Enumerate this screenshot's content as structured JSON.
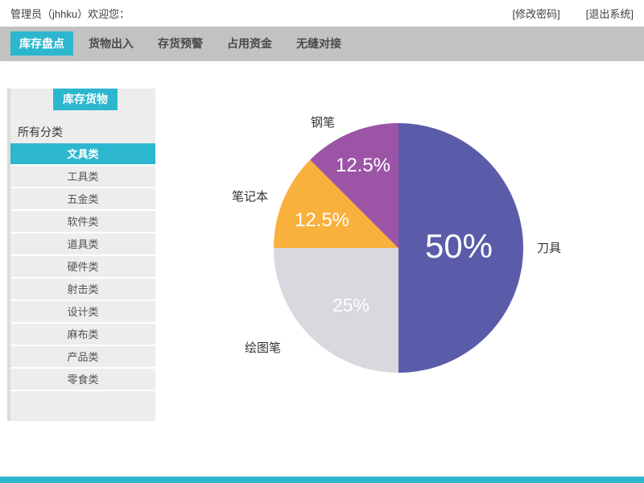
{
  "topbar": {
    "welcome": "管理员（jhhku）欢迎您：",
    "change_password": "[修改密码]",
    "logout": "[退出系统]"
  },
  "navbar": {
    "tabs": [
      {
        "label": "库存盘点",
        "active": true
      },
      {
        "label": "货物出入",
        "active": false
      },
      {
        "label": "存货预警",
        "active": false
      },
      {
        "label": "占用资金",
        "active": false
      },
      {
        "label": "无缝对接",
        "active": false
      }
    ]
  },
  "sidebar": {
    "title": "库存货物",
    "filter_label": "所有分类",
    "categories": [
      {
        "label": "文具类",
        "active": true
      },
      {
        "label": "工具类",
        "active": false
      },
      {
        "label": "五金类",
        "active": false
      },
      {
        "label": "软件类",
        "active": false
      },
      {
        "label": "道具类",
        "active": false
      },
      {
        "label": "硬件类",
        "active": false
      },
      {
        "label": "射击类",
        "active": false
      },
      {
        "label": "设计类",
        "active": false
      },
      {
        "label": "麻布类",
        "active": false
      },
      {
        "label": "产品类",
        "active": false
      },
      {
        "label": "零食类",
        "active": false
      }
    ]
  },
  "chart_data": {
    "type": "pie",
    "start_angle_deg": 0,
    "direction": "clockwise",
    "legend_position": "outside-labels",
    "slices": [
      {
        "label": "刀具",
        "value": 50,
        "percent_text": "50%",
        "color": "#5a5ca9"
      },
      {
        "label": "绘图笔",
        "value": 25,
        "percent_text": "25%",
        "color": "#d8d8de"
      },
      {
        "label": "笔记本",
        "value": 12.5,
        "percent_text": "12.5%",
        "color": "#f9b13e"
      },
      {
        "label": "钢笔",
        "value": 12.5,
        "percent_text": "12.5%",
        "color": "#9c55a6"
      }
    ]
  },
  "colors": {
    "accent": "#2db7cf",
    "nav_bg": "#c2c2c2",
    "sidebar_bg": "#ededed",
    "sidebar_edge": "#dcdcdc",
    "pie_blue": "#5a5ca9",
    "pie_gray": "#d8d8de",
    "pie_orange": "#f9b13e",
    "pie_purple": "#9c55a6"
  }
}
